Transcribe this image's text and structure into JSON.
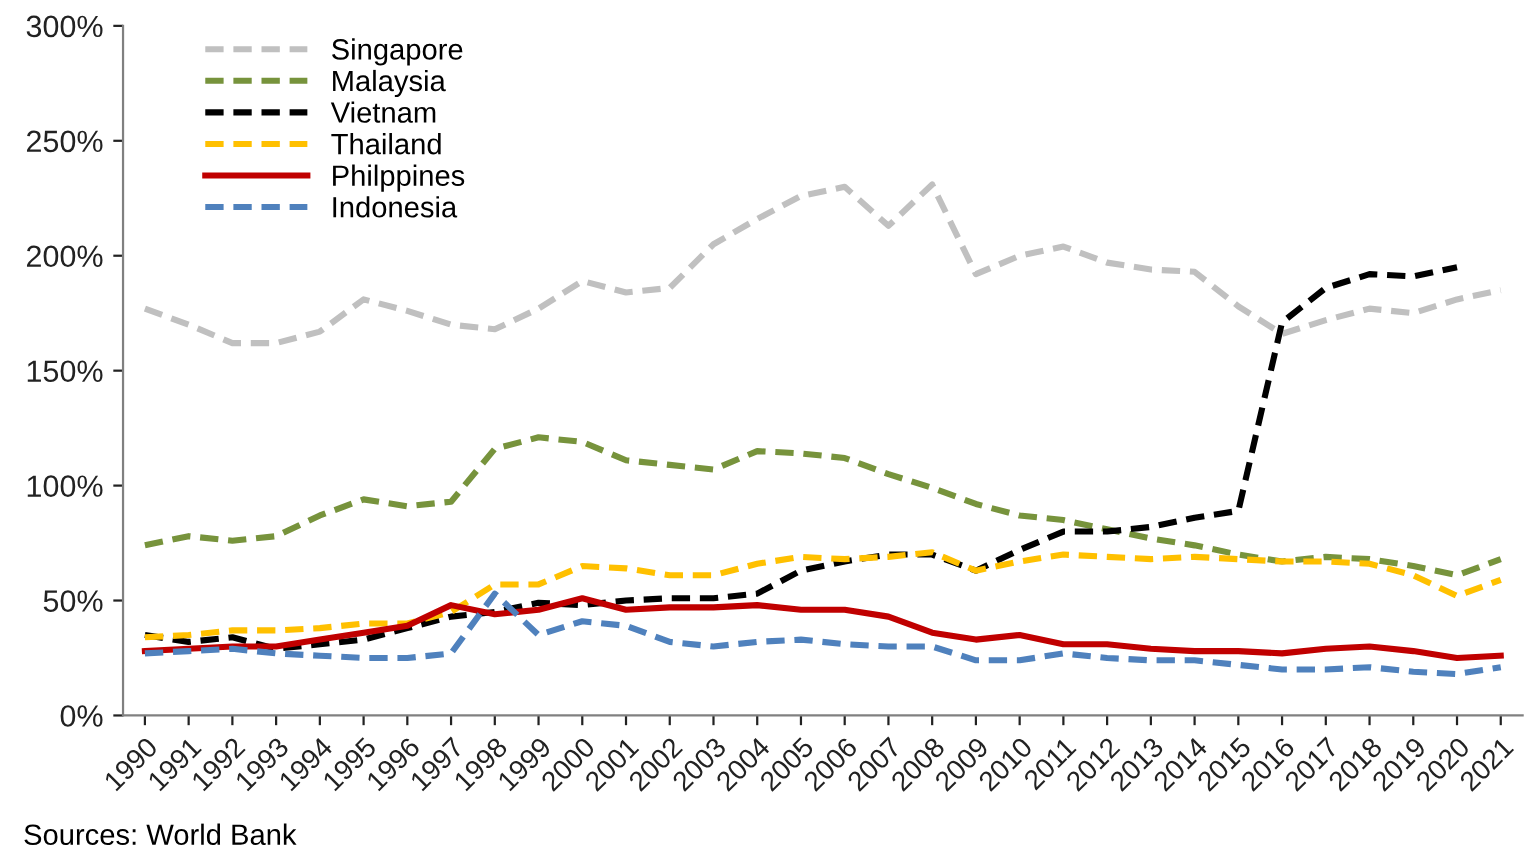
{
  "chart_data": {
    "type": "line",
    "categories": [
      "1990",
      "1991",
      "1992",
      "1993",
      "1994",
      "1995",
      "1996",
      "1997",
      "1998",
      "1999",
      "2000",
      "2001",
      "2002",
      "2003",
      "2004",
      "2005",
      "2006",
      "2007",
      "2008",
      "2009",
      "2010",
      "2011",
      "2012",
      "2013",
      "2014",
      "2015",
      "2016",
      "2017",
      "2018",
      "2019",
      "2020",
      "2021"
    ],
    "series": [
      {
        "name": "Singapore",
        "color": "#c0c0c0",
        "line_style": "dashed",
        "values": [
          177,
          170,
          162,
          162,
          167,
          181,
          176,
          170,
          168,
          177,
          189,
          184,
          186,
          205,
          216,
          226,
          230,
          213,
          231,
          192,
          200,
          204,
          197,
          194,
          193,
          178,
          166,
          172,
          177,
          175,
          181,
          185
        ]
      },
      {
        "name": "Malaysia",
        "color": "#77933c",
        "line_style": "dashed",
        "values": [
          74,
          78,
          76,
          78,
          87,
          94,
          91,
          93,
          116,
          121,
          119,
          111,
          109,
          107,
          115,
          114,
          112,
          105,
          99,
          92,
          87,
          85,
          81,
          77,
          74,
          70,
          67,
          69,
          68,
          65,
          61,
          68
        ]
      },
      {
        "name": "Vietnam",
        "color": "#000000",
        "line_style": "dashed",
        "values": [
          35,
          32,
          34,
          29,
          31,
          33,
          38,
          43,
          45,
          49,
          48,
          50,
          51,
          51,
          53,
          63,
          67,
          70,
          70,
          63,
          72,
          80,
          80,
          82,
          86,
          89,
          171,
          186,
          192,
          191,
          195,
          null
        ]
      },
      {
        "name": "Thailand",
        "color": "#ffc000",
        "line_style": "dashed",
        "values": [
          34,
          35,
          37,
          37,
          38,
          40,
          40,
          45,
          57,
          57,
          65,
          64,
          61,
          61,
          66,
          69,
          68,
          69,
          71,
          63,
          67,
          70,
          69,
          68,
          69,
          68,
          67,
          67,
          66,
          61,
          52,
          59
        ]
      },
      {
        "name": "Philppines",
        "color": "#c00000",
        "line_style": "solid",
        "values": [
          28,
          29,
          30,
          30,
          33,
          36,
          39,
          48,
          44,
          46,
          51,
          46,
          47,
          47,
          48,
          46,
          46,
          43,
          36,
          33,
          35,
          31,
          31,
          29,
          28,
          28,
          27,
          29,
          30,
          28,
          25,
          26
        ]
      },
      {
        "name": "Indonesia",
        "color": "#4f81bd",
        "line_style": "dashed",
        "values": [
          27,
          28,
          29,
          27,
          26,
          25,
          25,
          27,
          53,
          35,
          41,
          39,
          32,
          30,
          32,
          33,
          31,
          30,
          30,
          24,
          24,
          27,
          25,
          24,
          24,
          22,
          20,
          20,
          21,
          19,
          18,
          21
        ]
      }
    ],
    "ylim": [
      0,
      300
    ],
    "yticks": [
      {
        "value": 0,
        "label": "0%"
      },
      {
        "value": 50,
        "label": "50%"
      },
      {
        "value": 100,
        "label": "100%"
      },
      {
        "value": 150,
        "label": "150%"
      },
      {
        "value": 200,
        "label": "200%"
      },
      {
        "value": 250,
        "label": "250%"
      },
      {
        "value": 300,
        "label": "300%"
      }
    ],
    "grid": false,
    "legend": "top left",
    "annotations": [
      "Sources: World Bank"
    ]
  }
}
